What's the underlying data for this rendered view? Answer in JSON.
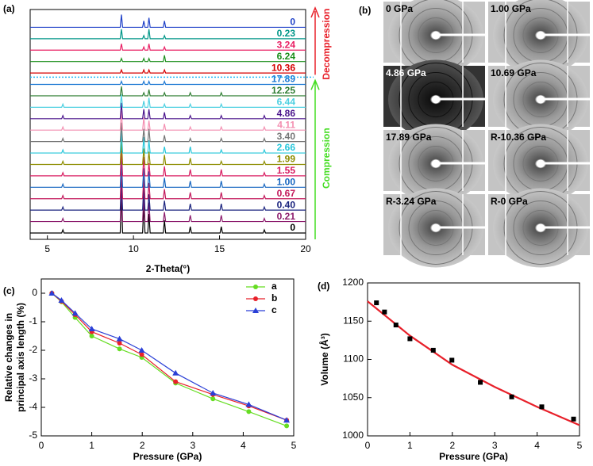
{
  "chart_data": [
    {
      "type": "stacked_line",
      "panel_label": "(a)",
      "xlabel": "2-Theta(°)",
      "xlim": [
        4,
        20
      ],
      "xticks": [
        5,
        10,
        15,
        20
      ],
      "annotations": {
        "top": "Decompression",
        "bottom": "Compression"
      },
      "x": [
        5.9,
        9.3,
        10.6,
        10.9,
        11.8,
        13.3,
        15.1,
        17.6
      ],
      "series": [
        {
          "name": "0",
          "color": "#000000",
          "values": [
            1,
            12,
            9,
            6,
            4,
            2,
            2,
            1
          ]
        },
        {
          "name": "0.21",
          "color": "#8b1a6b",
          "values": [
            1,
            11,
            8,
            6,
            3,
            2,
            2,
            1
          ]
        },
        {
          "name": "0.40",
          "color": "#1a237e",
          "values": [
            1,
            10,
            8,
            5,
            3,
            2,
            2,
            1
          ]
        },
        {
          "name": "0.67",
          "color": "#c2185b",
          "values": [
            1,
            9,
            7,
            5,
            3,
            2,
            2,
            1
          ]
        },
        {
          "name": "1.00",
          "color": "#1565c0",
          "values": [
            1,
            9,
            6,
            5,
            3,
            2,
            2,
            1
          ]
        },
        {
          "name": "1.55",
          "color": "#d81b60",
          "values": [
            1,
            8,
            6,
            4,
            3,
            2,
            2,
            1
          ]
        },
        {
          "name": "1.99",
          "color": "#8d8d00",
          "values": [
            1,
            8,
            5,
            4,
            3,
            2,
            1,
            1
          ]
        },
        {
          "name": "2.66",
          "color": "#26c6da",
          "values": [
            1,
            7,
            5,
            4,
            2,
            2,
            1,
            1
          ]
        },
        {
          "name": "3.40",
          "color": "#757575",
          "values": [
            1,
            6,
            4,
            4,
            2,
            1,
            1,
            1
          ]
        },
        {
          "name": "4.11",
          "color": "#f48fb1",
          "values": [
            1,
            6,
            4,
            3,
            2,
            1,
            1,
            1
          ]
        },
        {
          "name": "4.86",
          "color": "#4a148c",
          "values": [
            1,
            5,
            3,
            3,
            2,
            1,
            1,
            1
          ]
        },
        {
          "name": "6.44",
          "color": "#4dd0e1",
          "values": [
            1,
            4,
            2,
            3,
            1,
            1,
            1,
            0
          ]
        },
        {
          "name": "12.25",
          "color": "#2e7d32",
          "values": [
            0,
            3,
            1,
            2,
            1,
            1,
            1,
            0
          ]
        },
        {
          "name": "17.89",
          "color": "#1976d2",
          "values": [
            0,
            1,
            1,
            1,
            1,
            0,
            0,
            0
          ]
        },
        {
          "name": "10.36",
          "color": "#d50000",
          "values": [
            0,
            1,
            1,
            1,
            1,
            0,
            0,
            0
          ]
        },
        {
          "name": "6.24",
          "color": "#1b8e1b",
          "values": [
            0,
            1,
            1,
            1,
            2,
            0,
            0,
            0
          ]
        },
        {
          "name": "3.24",
          "color": "#e91e63",
          "values": [
            0,
            2,
            1,
            2,
            1,
            0,
            0,
            0
          ]
        },
        {
          "name": "0.23",
          "color": "#009688",
          "values": [
            0,
            3,
            1,
            3,
            1,
            0,
            0,
            0
          ]
        },
        {
          "name": "0",
          "color": "#1e40c8",
          "values": [
            0,
            4,
            2,
            3,
            2,
            0,
            0,
            0
          ]
        }
      ]
    },
    {
      "type": "line",
      "panel_label": "(c)",
      "xlabel": "Pressure (GPa)",
      "ylabel": [
        "Relative changes in",
        "principal axis length (%)"
      ],
      "xlim": [
        0,
        5
      ],
      "xticks": [
        0,
        1,
        2,
        3,
        4,
        5
      ],
      "ylim": [
        -5,
        0.5
      ],
      "yticks": [
        -5,
        -4,
        -3,
        -2,
        -1,
        0
      ],
      "legend": "upper right",
      "x": [
        0.21,
        0.4,
        0.67,
        1.0,
        1.55,
        1.99,
        2.66,
        3.4,
        4.11,
        4.86
      ],
      "series": [
        {
          "name": "a",
          "color": "#66dd22",
          "marker": "circle",
          "values": [
            0,
            -0.3,
            -0.85,
            -1.5,
            -1.95,
            -2.25,
            -3.15,
            -3.7,
            -4.15,
            -4.65
          ]
        },
        {
          "name": "b",
          "color": "#e8202a",
          "marker": "circle",
          "values": [
            0,
            -0.28,
            -0.75,
            -1.35,
            -1.75,
            -2.15,
            -3.1,
            -3.55,
            -3.95,
            -4.45
          ]
        },
        {
          "name": "c",
          "color": "#2a3fd6",
          "marker": "triangle",
          "values": [
            0,
            -0.25,
            -0.7,
            -1.25,
            -1.6,
            -2.0,
            -2.8,
            -3.5,
            -3.9,
            -4.45
          ]
        }
      ]
    },
    {
      "type": "scatter",
      "panel_label": "(d)",
      "xlabel": "Pressure (GPa)",
      "ylabel": "Volume (Å³)",
      "xlim": [
        0,
        5
      ],
      "xticks": [
        0,
        1,
        2,
        3,
        4,
        5
      ],
      "ylim": [
        1000,
        1200
      ],
      "yticks": [
        1000,
        1050,
        1100,
        1150,
        1200
      ],
      "points": {
        "color": "#000000",
        "x": [
          0.21,
          0.4,
          0.67,
          1.0,
          1.55,
          1.99,
          2.66,
          3.4,
          4.11,
          4.86
        ],
        "values": [
          1174,
          1162,
          1145,
          1127,
          1112,
          1099,
          1070,
          1051,
          1038,
          1022
        ]
      },
      "fit": {
        "color": "#e8202a",
        "x": [
          0,
          1,
          2,
          3,
          4,
          5
        ],
        "values": [
          1176,
          1131,
          1093,
          1064,
          1038,
          1014
        ]
      }
    }
  ],
  "panel_b": {
    "label": "(b)",
    "images": [
      "0 GPa",
      "1.00 GPa",
      "4.86 GPa",
      "10.69 GPa",
      "17.89 GPa",
      "R-10.36 GPa",
      "R-3.24 GPa",
      "R-0 GPa"
    ]
  }
}
